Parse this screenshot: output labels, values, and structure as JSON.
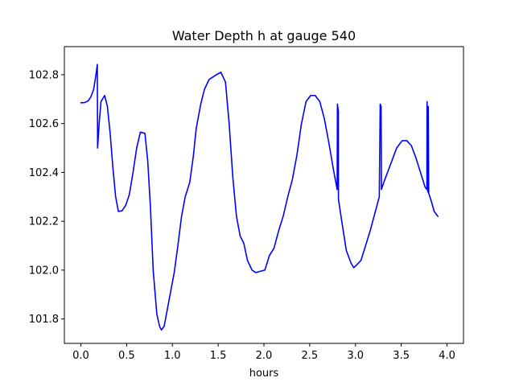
{
  "chart_data": {
    "type": "line",
    "title": "Water Depth h at gauge 540",
    "xlabel": "hours",
    "ylabel": "",
    "xlim": [
      -0.18,
      4.18
    ],
    "ylim": [
      101.7,
      102.915
    ],
    "x_ticks": [
      {
        "value": 0.0,
        "label": "0.0"
      },
      {
        "value": 0.5,
        "label": "0.5"
      },
      {
        "value": 1.0,
        "label": "1.0"
      },
      {
        "value": 1.5,
        "label": "1.5"
      },
      {
        "value": 2.0,
        "label": "2.0"
      },
      {
        "value": 2.5,
        "label": "2.5"
      },
      {
        "value": 3.0,
        "label": "3.0"
      },
      {
        "value": 3.5,
        "label": "3.5"
      },
      {
        "value": 4.0,
        "label": "4.0"
      }
    ],
    "y_ticks": [
      {
        "value": 101.8,
        "label": "101.8"
      },
      {
        "value": 102.0,
        "label": "102.0"
      },
      {
        "value": 102.2,
        "label": "102.2"
      },
      {
        "value": 102.4,
        "label": "102.4"
      },
      {
        "value": 102.6,
        "label": "102.6"
      },
      {
        "value": 102.8,
        "label": "102.8"
      }
    ],
    "grid": false,
    "series": [
      {
        "color": "#0000ff",
        "points": [
          [
            0.0,
            102.685
          ],
          [
            0.04,
            102.686
          ],
          [
            0.08,
            102.693
          ],
          [
            0.11,
            102.71
          ],
          [
            0.14,
            102.74
          ],
          [
            0.165,
            102.8
          ],
          [
            0.18,
            102.842
          ],
          [
            0.183,
            102.5
          ],
          [
            0.2,
            102.6
          ],
          [
            0.22,
            102.69
          ],
          [
            0.26,
            102.715
          ],
          [
            0.29,
            102.67
          ],
          [
            0.32,
            102.56
          ],
          [
            0.35,
            102.42
          ],
          [
            0.38,
            102.3
          ],
          [
            0.41,
            102.24
          ],
          [
            0.45,
            102.243
          ],
          [
            0.49,
            102.265
          ],
          [
            0.53,
            102.31
          ],
          [
            0.57,
            102.4
          ],
          [
            0.61,
            102.5
          ],
          [
            0.65,
            102.565
          ],
          [
            0.7,
            102.56
          ],
          [
            0.73,
            102.45
          ],
          [
            0.76,
            102.26
          ],
          [
            0.79,
            102.0
          ],
          [
            0.83,
            101.82
          ],
          [
            0.86,
            101.77
          ],
          [
            0.88,
            101.755
          ],
          [
            0.91,
            101.77
          ],
          [
            0.94,
            101.83
          ],
          [
            0.98,
            101.91
          ],
          [
            1.02,
            101.99
          ],
          [
            1.06,
            102.1
          ],
          [
            1.1,
            102.22
          ],
          [
            1.14,
            102.3
          ],
          [
            1.19,
            102.36
          ],
          [
            1.23,
            102.47
          ],
          [
            1.26,
            102.58
          ],
          [
            1.31,
            102.68
          ],
          [
            1.35,
            102.74
          ],
          [
            1.4,
            102.78
          ],
          [
            1.44,
            102.79
          ],
          [
            1.48,
            102.8
          ],
          [
            1.53,
            102.81
          ],
          [
            1.58,
            102.77
          ],
          [
            1.62,
            102.6
          ],
          [
            1.66,
            102.38
          ],
          [
            1.7,
            102.22
          ],
          [
            1.74,
            102.14
          ],
          [
            1.78,
            102.11
          ],
          [
            1.82,
            102.04
          ],
          [
            1.87,
            102.0
          ],
          [
            1.91,
            101.99
          ],
          [
            1.96,
            101.995
          ],
          [
            2.01,
            102.0
          ],
          [
            2.06,
            102.06
          ],
          [
            2.11,
            102.09
          ],
          [
            2.16,
            102.16
          ],
          [
            2.21,
            102.22
          ],
          [
            2.26,
            102.3
          ],
          [
            2.31,
            102.37
          ],
          [
            2.36,
            102.47
          ],
          [
            2.41,
            102.6
          ],
          [
            2.46,
            102.69
          ],
          [
            2.51,
            102.715
          ],
          [
            2.56,
            102.715
          ],
          [
            2.61,
            102.69
          ],
          [
            2.66,
            102.62
          ],
          [
            2.71,
            102.52
          ],
          [
            2.76,
            102.41
          ],
          [
            2.8,
            102.33
          ],
          [
            2.803,
            102.68
          ],
          [
            2.813,
            102.65
          ],
          [
            2.814,
            102.29
          ],
          [
            2.85,
            102.2
          ],
          [
            2.9,
            102.08
          ],
          [
            2.95,
            102.03
          ],
          [
            2.98,
            102.01
          ],
          [
            3.01,
            102.02
          ],
          [
            3.06,
            102.04
          ],
          [
            3.11,
            102.1
          ],
          [
            3.16,
            102.16
          ],
          [
            3.21,
            102.23
          ],
          [
            3.26,
            102.3
          ],
          [
            3.27,
            102.68
          ],
          [
            3.28,
            102.67
          ],
          [
            3.283,
            102.33
          ],
          [
            3.31,
            102.36
          ],
          [
            3.36,
            102.41
          ],
          [
            3.41,
            102.46
          ],
          [
            3.45,
            102.5
          ],
          [
            3.51,
            102.53
          ],
          [
            3.56,
            102.53
          ],
          [
            3.61,
            102.51
          ],
          [
            3.66,
            102.46
          ],
          [
            3.71,
            102.4
          ],
          [
            3.76,
            102.34
          ],
          [
            3.78,
            102.33
          ],
          [
            3.782,
            102.69
          ],
          [
            3.79,
            102.32
          ],
          [
            3.795,
            102.67
          ],
          [
            3.8,
            102.315
          ],
          [
            3.83,
            102.28
          ],
          [
            3.86,
            102.24
          ],
          [
            3.9,
            102.22
          ]
        ]
      }
    ]
  }
}
